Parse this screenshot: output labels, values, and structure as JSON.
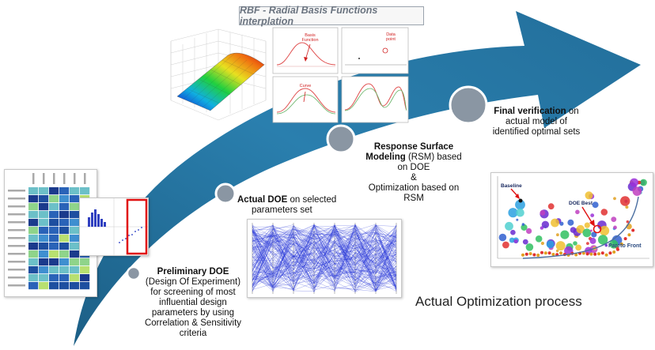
{
  "title": "RBF - Radial Basis Functions interplation",
  "rbf_labels": {
    "basis": [
      "Basis",
      "Function"
    ],
    "data": [
      "Data",
      "point"
    ],
    "curve": "Curve"
  },
  "steps": [
    {
      "bold": "Preliminary DOE",
      "text": [
        "(Design Of Experiment)",
        "for screening of most",
        "influential design",
        "parameters by using",
        "Correlation & Sensitivity",
        "criteria"
      ]
    },
    {
      "bold": "Actual DOE",
      "text": [
        "on selected",
        "parameters set"
      ]
    },
    {
      "bold": [
        "Response Surface",
        "Modeling"
      ],
      "text": [
        "(RSM) based",
        "on DOE"
      ],
      "and": "&",
      "extra": [
        "Optimization based on",
        "RSM"
      ]
    },
    {
      "bold": "Final verification",
      "text": [
        "on",
        "actual model of",
        "identified optimal sets"
      ]
    }
  ],
  "process_label": "Actual Optimization process",
  "pareto_labels": {
    "baseline": "Baseline",
    "doe_best": "DOE Best",
    "pareto_front": "Pareto Front"
  },
  "colors": {
    "arrow": "#1f6f9a",
    "arrow_light": "#2e88b4",
    "node": "#8a96a3",
    "node_stroke": "#ffffff",
    "highlight": "#e02020",
    "parallel": "#1d2fd6"
  }
}
